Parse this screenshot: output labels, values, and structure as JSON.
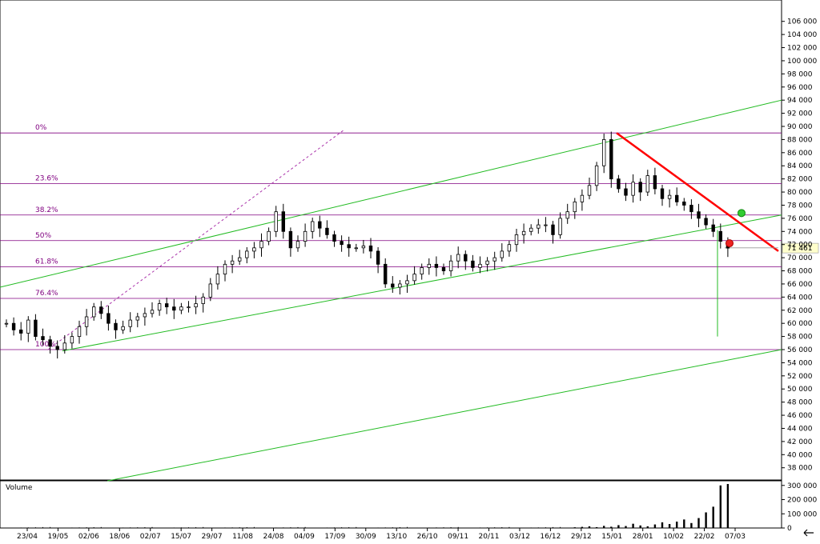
{
  "chart_data": {
    "type": "candlestick",
    "price_axis": {
      "ylim": [
        36000,
        108000
      ],
      "ticks": [
        "38 000",
        "40 000",
        "42 000",
        "44 000",
        "46 000",
        "48 000",
        "50 000",
        "52 000",
        "54 000",
        "56 000",
        "58 000",
        "60 000",
        "62 000",
        "64 000",
        "66 000",
        "68 000",
        "70 000",
        "72 000",
        "74 000",
        "76 000",
        "78 000",
        "80 000",
        "82 000",
        "84 000",
        "86 000",
        "88 000",
        "90 000",
        "92 000",
        "94 000",
        "96 000",
        "98 000",
        "100 000",
        "102 000",
        "104 000",
        "106 000"
      ],
      "tick_values": [
        38000,
        40000,
        42000,
        44000,
        46000,
        48000,
        50000,
        52000,
        54000,
        56000,
        58000,
        60000,
        62000,
        64000,
        66000,
        68000,
        70000,
        72000,
        74000,
        76000,
        78000,
        80000,
        82000,
        84000,
        86000,
        88000,
        90000,
        92000,
        94000,
        96000,
        98000,
        100000,
        102000,
        104000,
        106000
      ]
    },
    "x_axis": {
      "ticks": [
        "23/04",
        "19/05",
        "02/06",
        "18/06",
        "02/07",
        "15/07",
        "29/07",
        "11/08",
        "24/08",
        "04/09",
        "17/09",
        "30/09",
        "13/10",
        "26/10",
        "09/11",
        "20/11",
        "03/12",
        "16/12",
        "29/12",
        "15/01",
        "28/01",
        "10/02",
        "22/02",
        "07/03"
      ]
    },
    "last_price": "71 461",
    "last_price_value": 71461,
    "fibonacci": [
      {
        "label": "0%",
        "value": 89000
      },
      {
        "label": "23.6%",
        "value": 81300
      },
      {
        "label": "38.2%",
        "value": 76500
      },
      {
        "label": "50%",
        "value": 72600
      },
      {
        "label": "61.8%",
        "value": 68600
      },
      {
        "label": "76.4%",
        "value": 63800
      },
      {
        "label": "100%",
        "value": 56000
      }
    ],
    "candles_close": [
      60000,
      59000,
      58500,
      60500,
      58000,
      57500,
      56500,
      56000,
      57000,
      58000,
      59500,
      61000,
      62500,
      61500,
      60000,
      59000,
      59500,
      60500,
      61000,
      61500,
      62000,
      63000,
      62500,
      62000,
      62500,
      62500,
      63000,
      64000,
      66000,
      67500,
      69000,
      69500,
      70000,
      71000,
      71500,
      72500,
      74000,
      77000,
      74000,
      71500,
      72500,
      74000,
      75500,
      74500,
      73500,
      72500,
      72000,
      71500,
      71500,
      71800,
      71000,
      69000,
      66000,
      65500,
      66000,
      66500,
      67500,
      68500,
      69000,
      68500,
      68000,
      69500,
      70500,
      69500,
      68500,
      69000,
      69500,
      70000,
      71000,
      72000,
      73500,
      74000,
      74500,
      75000,
      75000,
      73500,
      76000,
      77000,
      78500,
      79500,
      81000,
      84000,
      88000,
      82000,
      80500,
      79500,
      81500,
      80000,
      82500,
      80500,
      79000,
      79500,
      78500,
      78000,
      77000,
      76000,
      75000,
      74000,
      72500,
      71461
    ],
    "volume_axis": {
      "ticks": [
        "0",
        "100 000",
        "200 000",
        "300 000"
      ],
      "tick_values": [
        0,
        100000,
        200000,
        300000
      ],
      "label": "Volume"
    },
    "volume_recent": [
      5000,
      8000,
      12000,
      6000,
      15000,
      9000,
      20000,
      14000,
      30000,
      18000,
      12000,
      25000,
      40000,
      28000,
      45000,
      60000,
      35000,
      70000,
      110000,
      150000,
      300000,
      310000
    ]
  }
}
